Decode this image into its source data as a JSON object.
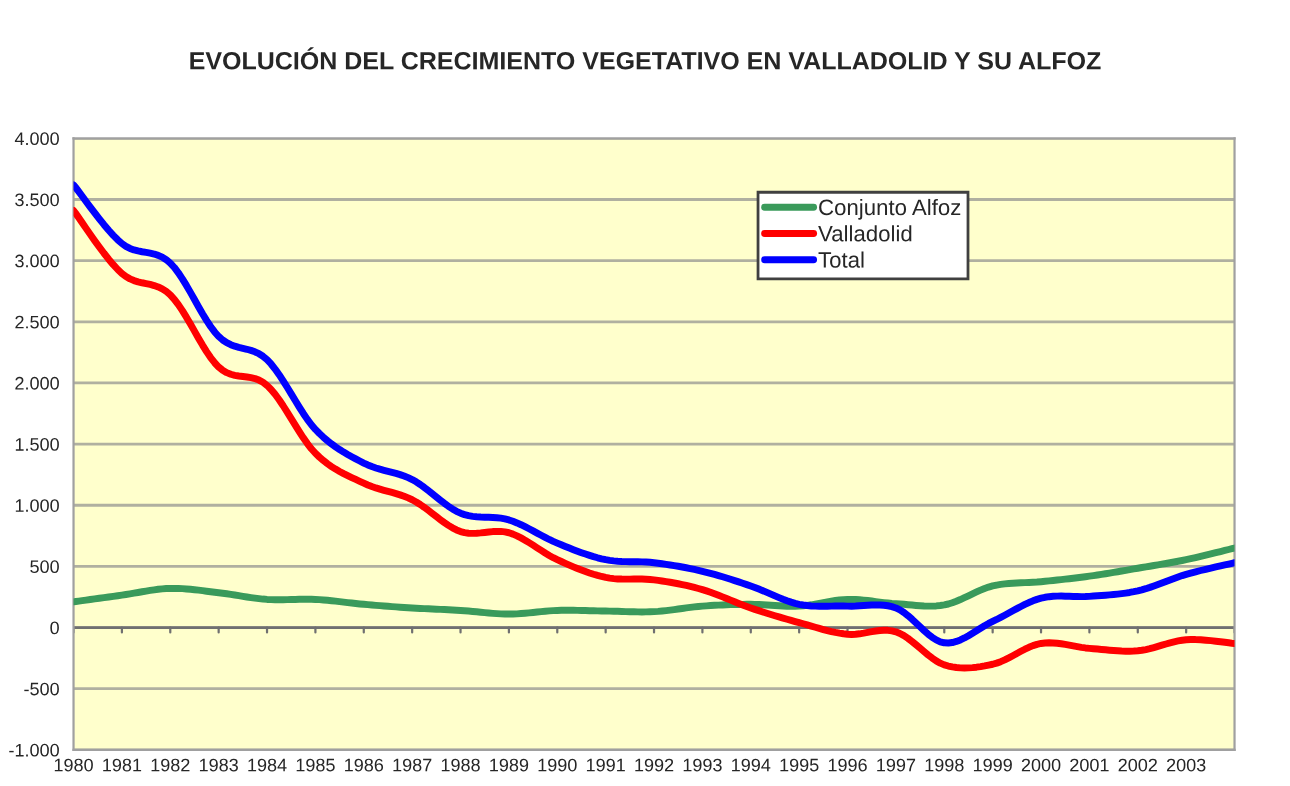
{
  "chart_data": {
    "type": "line",
    "title": "EVOLUCIÓN DEL CRECIMIENTO VEGETATIVO EN VALLADOLID Y SU ALFOZ",
    "categories": [
      "1980",
      "1981",
      "1982",
      "1983",
      "1984",
      "1985",
      "1986",
      "1987",
      "1988",
      "1989",
      "1990",
      "1991",
      "1992",
      "1993",
      "1994",
      "1995",
      "1996",
      "1997",
      "1998",
      "1999",
      "2000",
      "2001",
      "2002",
      "2003",
      null
    ],
    "series": [
      {
        "name": "Conjunto Alfoz",
        "color": "#3a9a5b",
        "values": [
          210,
          265,
          320,
          285,
          230,
          230,
          190,
          160,
          140,
          110,
          140,
          135,
          130,
          175,
          190,
          175,
          230,
          195,
          185,
          340,
          375,
          420,
          485,
          555,
          650
        ]
      },
      {
        "name": "Valladolid",
        "color": "#ff0000",
        "values": [
          3410,
          2895,
          2720,
          2130,
          1980,
          1425,
          1180,
          1045,
          785,
          775,
          555,
          410,
          390,
          310,
          160,
          40,
          -55,
          -35,
          -305,
          -300,
          -130,
          -170,
          -190,
          -100,
          -130
        ]
      },
      {
        "name": "Total",
        "color": "#0000ff",
        "values": [
          3620,
          3140,
          2980,
          2380,
          2190,
          1620,
          1345,
          1210,
          935,
          880,
          690,
          555,
          530,
          460,
          340,
          190,
          175,
          160,
          -125,
          50,
          240,
          255,
          300,
          435,
          530
        ]
      }
    ],
    "ylim": [
      -1000,
      4000
    ],
    "yticks": [
      {
        "value": -1000,
        "label": "-1.000"
      },
      {
        "value": -500,
        "label": "-500"
      },
      0,
      500,
      {
        "value": 1000,
        "label": "1.000"
      },
      {
        "value": 1500,
        "label": "1.500"
      },
      {
        "value": 2000,
        "label": "2.000"
      },
      {
        "value": 2500,
        "label": "2.500"
      },
      {
        "value": 3000,
        "label": "3.000"
      },
      {
        "value": 3500,
        "label": "3.500"
      },
      {
        "value": 4000,
        "label": "4.000"
      }
    ],
    "grid": "y",
    "legend": "top right",
    "line_style": "solid"
  }
}
